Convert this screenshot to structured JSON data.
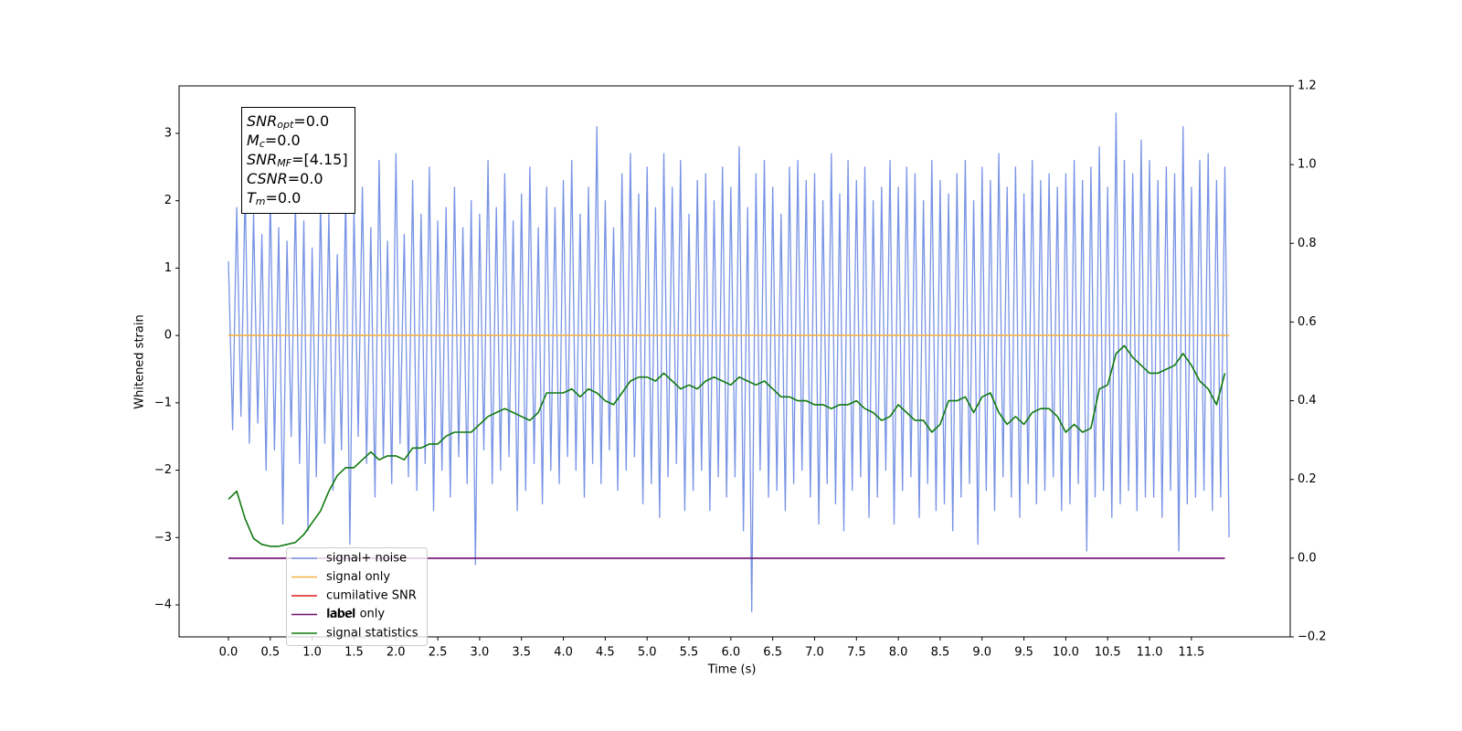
{
  "chart_data": {
    "type": "line",
    "xlabel": "Time (s)",
    "ylabel": "Whitened strain",
    "xlim": [
      -0.589,
      12.68
    ],
    "ylim": [
      -4.475,
      3.705
    ],
    "y2lim": [
      -0.2,
      1.2
    ],
    "xticks": [
      {
        "value": 0,
        "label": "0.0"
      },
      0.5,
      {
        "value": 1,
        "label": "1.0"
      },
      1.5,
      {
        "value": 2,
        "label": "2.0"
      },
      2.5,
      {
        "value": 3,
        "label": "3.0"
      },
      3.5,
      {
        "value": 4,
        "label": "4.0"
      },
      4.5,
      {
        "value": 5,
        "label": "5.0"
      },
      5.5,
      {
        "value": 6,
        "label": "6.0"
      },
      6.5,
      {
        "value": 7,
        "label": "7.0"
      },
      7.5,
      {
        "value": 8,
        "label": "8.0"
      },
      8.5,
      {
        "value": 9,
        "label": "9.0"
      },
      9.5,
      {
        "value": 10,
        "label": "10.0"
      },
      10.5,
      {
        "value": 11,
        "label": "11.0"
      },
      11.5
    ],
    "yticks": [
      {
        "value": -4,
        "label": "−4"
      },
      {
        "value": -3,
        "label": "−3"
      },
      {
        "value": -2,
        "label": "−2"
      },
      {
        "value": -1,
        "label": "−1"
      },
      0,
      1,
      2,
      3
    ],
    "y2ticks": [
      {
        "value": -0.2,
        "label": "−0.2"
      },
      {
        "value": 0,
        "label": "0.0"
      },
      0.2,
      0.4,
      0.6,
      0.8,
      {
        "value": 1,
        "label": "1.0"
      },
      1.2
    ],
    "legend": "lower left",
    "legend_ghost_text": "label only",
    "textbox": [
      {
        "main": "SNR",
        "sub": "opt",
        "rest": "=0.0"
      },
      {
        "main": "M",
        "sub": "c",
        "rest": "=0.0"
      },
      {
        "main": "SNR",
        "sub": "MF",
        "rest": "=[4.15]"
      },
      {
        "main": "CSNR",
        "sub": null,
        "rest": "=0.0"
      },
      {
        "main": "T",
        "sub": "m",
        "rest": "=0.0"
      }
    ],
    "series": [
      {
        "name": "signal+ noise",
        "color": "#7893e6",
        "axis": "y",
        "x": [
          0,
          0.05,
          0.1,
          0.15,
          0.2,
          0.25,
          0.3,
          0.35,
          0.4,
          0.45,
          0.5,
          0.55,
          0.6,
          0.65,
          0.7,
          0.75,
          0.8,
          0.85,
          0.9,
          0.95,
          1,
          1.05,
          1.1,
          1.15,
          1.2,
          1.25,
          1.3,
          1.35,
          1.4,
          1.45,
          1.5,
          1.55,
          1.6,
          1.65,
          1.7,
          1.75,
          1.8,
          1.85,
          1.9,
          1.95,
          2,
          2.05,
          2.1,
          2.15,
          2.2,
          2.25,
          2.3,
          2.35,
          2.4,
          2.45,
          2.5,
          2.55,
          2.6,
          2.65,
          2.7,
          2.75,
          2.8,
          2.85,
          2.9,
          2.95,
          3,
          3.05,
          3.1,
          3.15,
          3.2,
          3.25,
          3.3,
          3.35,
          3.4,
          3.45,
          3.5,
          3.55,
          3.6,
          3.65,
          3.7,
          3.75,
          3.8,
          3.85,
          3.9,
          3.95,
          4,
          4.05,
          4.1,
          4.15,
          4.2,
          4.25,
          4.3,
          4.35,
          4.4,
          4.45,
          4.5,
          4.55,
          4.6,
          4.65,
          4.7,
          4.75,
          4.8,
          4.85,
          4.9,
          4.95,
          5,
          5.05,
          5.1,
          5.15,
          5.2,
          5.25,
          5.3,
          5.35,
          5.4,
          5.45,
          5.5,
          5.55,
          5.6,
          5.65,
          5.7,
          5.75,
          5.8,
          5.85,
          5.9,
          5.95,
          6,
          6.05,
          6.1,
          6.15,
          6.2,
          6.25,
          6.3,
          6.35,
          6.4,
          6.45,
          6.5,
          6.55,
          6.6,
          6.65,
          6.7,
          6.75,
          6.8,
          6.85,
          6.9,
          6.95,
          7,
          7.05,
          7.1,
          7.15,
          7.2,
          7.25,
          7.3,
          7.35,
          7.4,
          7.45,
          7.5,
          7.55,
          7.6,
          7.65,
          7.7,
          7.75,
          7.8,
          7.85,
          7.9,
          7.95,
          8,
          8.05,
          8.1,
          8.15,
          8.2,
          8.25,
          8.3,
          8.35,
          8.4,
          8.45,
          8.5,
          8.55,
          8.6,
          8.65,
          8.7,
          8.75,
          8.8,
          8.85,
          8.9,
          8.95,
          9,
          9.05,
          9.1,
          9.15,
          9.2,
          9.25,
          9.3,
          9.35,
          9.4,
          9.45,
          9.5,
          9.55,
          9.6,
          9.65,
          9.7,
          9.75,
          9.8,
          9.85,
          9.9,
          9.95,
          10,
          10.05,
          10.1,
          10.15,
          10.2,
          10.25,
          10.3,
          10.35,
          10.4,
          10.45,
          10.5,
          10.55,
          10.6,
          10.65,
          10.7,
          10.75,
          10.8,
          10.85,
          10.9,
          10.95,
          11,
          11.05,
          11.1,
          11.15,
          11.2,
          11.25,
          11.3,
          11.35,
          11.4,
          11.45,
          11.5,
          11.55,
          11.6,
          11.65,
          11.7,
          11.75,
          11.8,
          11.85,
          11.9,
          11.95
        ],
        "values": [
          1.1,
          -1.4,
          1.9,
          -1.2,
          2.2,
          -1.6,
          1.8,
          -1.3,
          1.5,
          -2.0,
          2.1,
          -1.7,
          1.6,
          -2.8,
          1.4,
          -1.5,
          2.0,
          -1.9,
          1.7,
          -2.9,
          1.3,
          -2.1,
          2.0,
          -1.6,
          1.8,
          -2.3,
          1.2,
          -1.7,
          2.1,
          -3.1,
          1.9,
          -1.5,
          2.2,
          -1.9,
          1.6,
          -2.4,
          2.6,
          -1.8,
          1.4,
          -2.2,
          2.7,
          -1.6,
          1.5,
          -2.1,
          2.3,
          -2.3,
          1.8,
          -1.9,
          2.5,
          -2.6,
          1.7,
          -2.0,
          1.9,
          -2.4,
          2.2,
          -1.8,
          1.6,
          -2.2,
          2.0,
          -3.4,
          1.8,
          -1.7,
          2.6,
          -2.2,
          1.9,
          -2.0,
          2.4,
          -1.8,
          1.7,
          -2.6,
          2.1,
          -2.3,
          2.5,
          -1.9,
          1.6,
          -2.5,
          2.2,
          -2.0,
          1.9,
          -2.2,
          2.3,
          -1.8,
          2.6,
          -2.0,
          1.8,
          -2.4,
          2.2,
          -1.9,
          3.1,
          -2.2,
          2.0,
          -1.7,
          1.6,
          -2.3,
          2.4,
          -2.0,
          2.7,
          -1.8,
          2.1,
          -2.5,
          2.5,
          -2.2,
          1.9,
          -2.7,
          2.7,
          -2.1,
          2.2,
          -1.9,
          2.6,
          -2.6,
          1.8,
          -2.3,
          2.3,
          -2.0,
          2.4,
          -2.6,
          2.0,
          -2.1,
          2.5,
          -2.4,
          2.2,
          -2.1,
          2.8,
          -2.9,
          1.9,
          -4.1,
          2.4,
          -2.0,
          2.6,
          -2.4,
          2.2,
          -2.3,
          1.8,
          -2.6,
          2.5,
          -2.2,
          2.6,
          -2.0,
          2.3,
          -2.4,
          2.4,
          -2.8,
          2.0,
          -2.2,
          2.7,
          -2.5,
          2.1,
          -2.9,
          2.6,
          -2.3,
          2.3,
          -2.1,
          2.5,
          -2.7,
          2.0,
          -2.4,
          2.2,
          -2.0,
          2.6,
          -2.8,
          2.2,
          -2.3,
          2.5,
          -2.1,
          2.4,
          -2.7,
          2.0,
          -2.2,
          2.6,
          -2.6,
          2.3,
          -2.5,
          2.1,
          -2.9,
          2.4,
          -2.4,
          2.6,
          -2.2,
          2.0,
          -3.1,
          2.5,
          -2.3,
          2.3,
          -2.6,
          2.7,
          -2.1,
          2.2,
          -2.4,
          2.5,
          -2.7,
          2.1,
          -2.2,
          2.6,
          -2.5,
          2.3,
          -2.3,
          2.4,
          -2.1,
          2.2,
          -2.6,
          2.4,
          -2.5,
          2.6,
          -2.2,
          2.3,
          -3.2,
          2.5,
          -2.4,
          2.8,
          -2.3,
          2.2,
          -2.7,
          3.3,
          -2.5,
          2.6,
          -2.3,
          2.4,
          -2.6,
          2.9,
          -2.4,
          2.6,
          -2.4,
          2.3,
          -2.7,
          2.5,
          -2.3,
          2.4,
          -3.2,
          3.1,
          -2.5,
          2.2,
          -2.4,
          2.6,
          -2.3,
          2.7,
          -2.6,
          2.3,
          -2.4,
          2.5,
          -3.0
        ]
      },
      {
        "name": "signal only",
        "color": "#f5b041",
        "axis": "y",
        "x": [
          0,
          11.95
        ],
        "values": [
          0,
          0
        ]
      },
      {
        "name": "cumilative SNR",
        "color": "#e31a1c",
        "axis": "y",
        "x": [],
        "values": []
      },
      {
        "name": "label",
        "color": "#6a0c6e",
        "axis": "y2",
        "x": [
          0,
          11.9
        ],
        "values": [
          0,
          0
        ]
      },
      {
        "name": "signal statistics",
        "color": "#107a10",
        "axis": "y2",
        "x": [
          0,
          0.1,
          0.2,
          0.3,
          0.4,
          0.5,
          0.6,
          0.7,
          0.8,
          0.9,
          1,
          1.1,
          1.2,
          1.3,
          1.4,
          1.5,
          1.6,
          1.7,
          1.8,
          1.9,
          2,
          2.1,
          2.2,
          2.3,
          2.4,
          2.5,
          2.6,
          2.7,
          2.8,
          2.9,
          3,
          3.1,
          3.2,
          3.3,
          3.4,
          3.5,
          3.6,
          3.7,
          3.8,
          3.9,
          4,
          4.1,
          4.2,
          4.3,
          4.4,
          4.5,
          4.6,
          4.7,
          4.8,
          4.9,
          5,
          5.1,
          5.2,
          5.3,
          5.4,
          5.5,
          5.6,
          5.7,
          5.8,
          5.9,
          6,
          6.1,
          6.2,
          6.3,
          6.4,
          6.5,
          6.6,
          6.7,
          6.8,
          6.9,
          7,
          7.1,
          7.2,
          7.3,
          7.4,
          7.5,
          7.6,
          7.7,
          7.8,
          7.9,
          8,
          8.1,
          8.2,
          8.3,
          8.4,
          8.5,
          8.6,
          8.7,
          8.8,
          8.9,
          9,
          9.1,
          9.2,
          9.3,
          9.4,
          9.5,
          9.6,
          9.7,
          9.8,
          9.9,
          10,
          10.1,
          10.2,
          10.3,
          10.4,
          10.5,
          10.6,
          10.7,
          10.8,
          10.9,
          11,
          11.1,
          11.2,
          11.3,
          11.4,
          11.5,
          11.6,
          11.7,
          11.8,
          11.9
        ],
        "values": [
          0.15,
          0.17,
          0.1,
          0.05,
          0.035,
          0.03,
          0.03,
          0.035,
          0.04,
          0.06,
          0.09,
          0.12,
          0.17,
          0.21,
          0.23,
          0.23,
          0.25,
          0.27,
          0.25,
          0.26,
          0.26,
          0.25,
          0.28,
          0.28,
          0.29,
          0.29,
          0.31,
          0.32,
          0.32,
          0.32,
          0.34,
          0.36,
          0.37,
          0.38,
          0.37,
          0.36,
          0.35,
          0.37,
          0.42,
          0.42,
          0.42,
          0.43,
          0.41,
          0.43,
          0.42,
          0.4,
          0.39,
          0.42,
          0.45,
          0.46,
          0.46,
          0.45,
          0.47,
          0.45,
          0.43,
          0.44,
          0.43,
          0.45,
          0.46,
          0.45,
          0.44,
          0.46,
          0.45,
          0.44,
          0.45,
          0.43,
          0.41,
          0.41,
          0.4,
          0.4,
          0.39,
          0.39,
          0.38,
          0.39,
          0.39,
          0.4,
          0.38,
          0.37,
          0.35,
          0.36,
          0.39,
          0.37,
          0.35,
          0.35,
          0.32,
          0.34,
          0.4,
          0.4,
          0.41,
          0.37,
          0.41,
          0.42,
          0.37,
          0.34,
          0.36,
          0.34,
          0.37,
          0.38,
          0.38,
          0.36,
          0.32,
          0.34,
          0.32,
          0.33,
          0.43,
          0.44,
          0.52,
          0.54,
          0.51,
          0.49,
          0.47,
          0.47,
          0.48,
          0.49,
          0.52,
          0.49,
          0.45,
          0.43,
          0.39,
          0.47
        ]
      }
    ]
  }
}
